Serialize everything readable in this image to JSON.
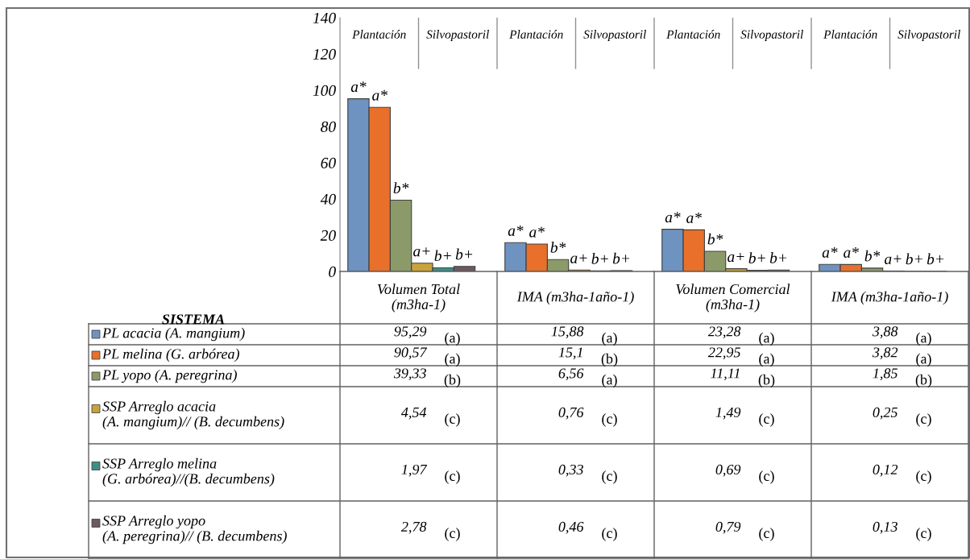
{
  "chart_data": {
    "type": "bar",
    "categories": [
      "Volumen Total\n(m3ha-1)",
      "IMA (m3ha-1año-1)",
      "Volumen Comercial\n(m3ha-1)",
      "IMA (m3ha-1año-1)"
    ],
    "legend_title": "SISTEMA",
    "annotations": [
      "Plantación",
      "Silvopastoril",
      {
        "text": "a*",
        "y": 95.29
      },
      {
        "text": "a*",
        "y": 15.88
      },
      {
        "text": "a*",
        "y": 23.28
      },
      {
        "text": "a*",
        "y": 3.88
      },
      {
        "text": "a*",
        "y": 90.57
      },
      {
        "text": "a*",
        "y": 15.1
      },
      {
        "text": "a*",
        "y": 22.95
      },
      {
        "text": "a*",
        "y": 3.82
      },
      {
        "text": "b*",
        "y": 39.33
      },
      {
        "text": "b*",
        "y": 6.56
      },
      {
        "text": "b*",
        "y": 11.11
      },
      {
        "text": "b*",
        "y": 1.85
      },
      {
        "text": "a+",
        "y": 4.54
      },
      {
        "text": "a+",
        "y": 0.76
      },
      {
        "text": "a+",
        "y": 1.49
      },
      {
        "text": "a+",
        "y": 0.25
      },
      {
        "text": "b+",
        "y": 1.97
      },
      {
        "text": "b+",
        "y": 0.33
      },
      {
        "text": "b+",
        "y": 0.69
      },
      {
        "text": "b+",
        "y": 0.12
      },
      {
        "text": "b+",
        "y": 2.78
      },
      {
        "text": "b+",
        "y": 0.46
      },
      {
        "text": "b+",
        "y": 0.79
      },
      {
        "text": "b+",
        "y": 0.13
      },
      "(a)",
      "(a)",
      "(a)",
      "(a)",
      "(a)",
      "(b)",
      "(a)",
      "(a)",
      "(b)",
      "(a)",
      "(b)",
      "(b)",
      "(c)",
      "(c)",
      "(c)",
      "(c)",
      "(c)",
      "(c)",
      "(c)",
      "(c)",
      "(c)",
      "(c)",
      "(c)",
      "(c)"
    ],
    "ylim": [
      0,
      140
    ],
    "yticks": [
      0,
      20,
      40,
      60,
      80,
      100,
      120,
      140
    ],
    "grid": false,
    "legend": "bottom",
    "series": [
      {
        "name": "PL acacia (A. mangium)",
        "color": "#6f93c0",
        "values": [
          95.29,
          15.88,
          23.28,
          3.88
        ],
        "value_labels": [
          "95,29",
          "15,88",
          "23,28",
          "3,88"
        ]
      },
      {
        "name": "PL melina (G. arbórea)",
        "color": "#e8702a",
        "values": [
          90.57,
          15.1,
          22.95,
          3.82
        ],
        "value_labels": [
          "90,57",
          "15,1",
          "22,95",
          "3,82"
        ]
      },
      {
        "name": "PL yopo (A. peregrina)",
        "color": "#8c9a6a",
        "values": [
          39.33,
          6.56,
          11.11,
          1.85
        ],
        "value_labels": [
          "39,33",
          "6,56",
          "11,11",
          "1,85"
        ]
      },
      {
        "name": "SSP Arreglo acacia\n(A. mangium)// (B. decumbens)",
        "color": "#c9a23a",
        "values": [
          4.54,
          0.76,
          1.49,
          0.25
        ],
        "value_labels": [
          "4,54",
          "0,76",
          "1,49",
          "0,25"
        ]
      },
      {
        "name": "SSP Arreglo melina\n(G. arbórea)//(B. decumbens)",
        "color": "#3f8f86",
        "values": [
          1.97,
          0.33,
          0.69,
          0.12
        ],
        "value_labels": [
          "1,97",
          "0,33",
          "0,69",
          "0,12"
        ]
      },
      {
        "name": "SSP Arreglo yopo\n(A. peregrina)// (B. decumbens)",
        "color": "#6b5a62",
        "values": [
          2.78,
          0.46,
          0.79,
          0.13
        ],
        "value_labels": [
          "2,78",
          "0,46",
          "0,79",
          "0,13"
        ]
      }
    ]
  }
}
